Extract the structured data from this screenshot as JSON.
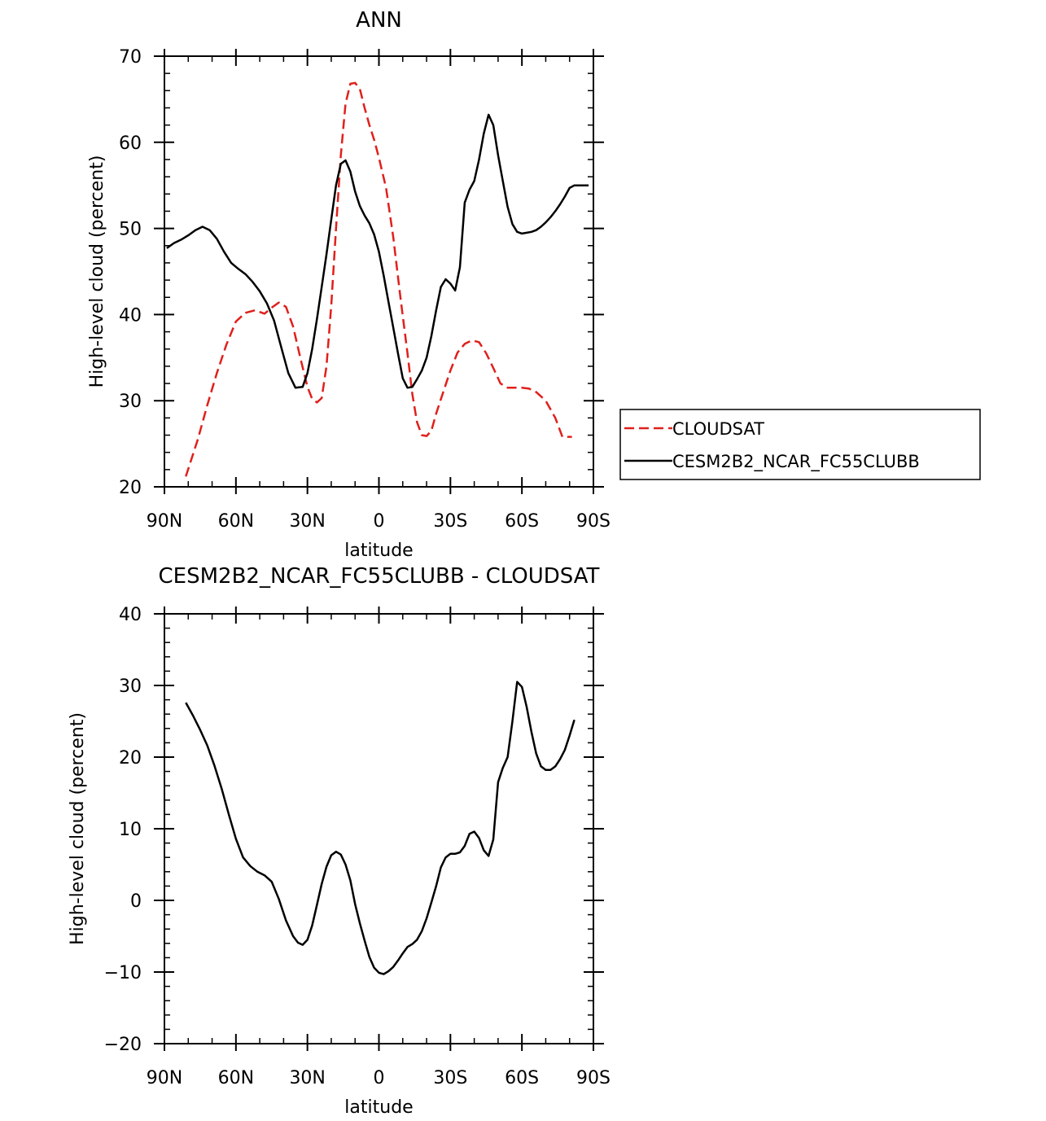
{
  "chart_data": [
    {
      "type": "line",
      "title": "ANN",
      "xlabel": "latitude",
      "ylabel": "High-level cloud (percent)",
      "xlim": [
        90,
        -90
      ],
      "ylim": [
        20,
        70
      ],
      "xticks": [
        90,
        60,
        30,
        0,
        -30,
        -60,
        -90
      ],
      "xtick_labels": [
        "90N",
        "60N",
        "30N",
        "0",
        "30S",
        "60S",
        "90S"
      ],
      "yticks": [
        20,
        30,
        40,
        50,
        60,
        70
      ],
      "ytick_labels": [
        "20",
        "30",
        "40",
        "50",
        "60",
        "70"
      ],
      "legend_position": "right",
      "grid": false,
      "series": [
        {
          "name": "CLOUDSAT",
          "color": "#e0201b",
          "style": "dashed",
          "x": [
            81,
            76,
            72,
            68,
            64,
            60,
            56,
            52,
            48,
            45,
            42,
            39,
            36,
            33,
            30,
            28,
            26,
            24,
            22,
            20,
            18,
            16,
            14,
            12,
            10,
            8,
            6,
            4,
            2,
            0,
            -3,
            -6,
            -9,
            -12,
            -14,
            -16,
            -18,
            -20,
            -22,
            -24,
            -27,
            -30,
            -33,
            -36,
            -39,
            -42,
            -45,
            -48,
            -51,
            -54,
            -57,
            -60,
            -63,
            -66,
            -70,
            -74,
            -77,
            -81
          ],
          "y": [
            21.2,
            25.5,
            29.5,
            33.2,
            36.5,
            39.2,
            40.2,
            40.5,
            40.1,
            40.8,
            41.4,
            40.9,
            38.6,
            35.0,
            31.6,
            30.2,
            29.8,
            30.3,
            34.0,
            41.0,
            50.0,
            58.5,
            64.5,
            66.8,
            66.9,
            66.2,
            64.0,
            62.0,
            60.3,
            58.2,
            54.7,
            49.0,
            42.0,
            35.5,
            30.8,
            27.5,
            26.0,
            25.9,
            26.5,
            28.5,
            31.0,
            33.5,
            35.6,
            36.6,
            37.0,
            36.8,
            35.5,
            33.8,
            32.0,
            31.5,
            31.5,
            31.5,
            31.4,
            31.0,
            30.0,
            28.0,
            25.8,
            25.8
          ]
        },
        {
          "name": "CESM2B2_NCAR_FC55CLUBB",
          "color": "#000000",
          "style": "solid",
          "x": [
            89,
            86,
            83,
            80,
            77,
            74,
            71,
            68,
            65,
            62,
            59,
            56,
            53,
            50,
            47,
            44,
            41,
            38,
            35,
            32,
            30,
            28,
            26,
            24,
            22,
            20,
            18,
            16,
            14,
            12,
            10,
            8,
            6,
            4,
            2,
            0,
            -2,
            -4,
            -6,
            -8,
            -10,
            -12,
            -14,
            -16,
            -18,
            -20,
            -22,
            -24,
            -26,
            -28,
            -30,
            -32,
            -34,
            -36,
            -38,
            -40,
            -42,
            -44,
            -46,
            -48,
            -50,
            -52,
            -54,
            -56,
            -58,
            -60,
            -62,
            -64,
            -66,
            -68,
            -70,
            -72,
            -74,
            -76,
            -78,
            -80,
            -82,
            -84,
            -86,
            -88
          ],
          "y": [
            47.7,
            48.3,
            48.7,
            49.2,
            49.8,
            50.2,
            49.8,
            48.8,
            47.3,
            46.0,
            45.3,
            44.7,
            43.8,
            42.7,
            41.3,
            39.3,
            36.2,
            33.2,
            31.5,
            31.6,
            33.2,
            36.0,
            39.5,
            43.2,
            47.0,
            51.0,
            55.0,
            57.5,
            57.9,
            56.6,
            54.3,
            52.6,
            51.5,
            50.6,
            49.3,
            47.3,
            44.5,
            41.5,
            38.5,
            35.5,
            32.6,
            31.5,
            31.6,
            32.5,
            33.5,
            35.0,
            37.5,
            40.5,
            43.2,
            44.1,
            43.6,
            42.8,
            45.5,
            53.0,
            54.5,
            55.5,
            58.0,
            61.0,
            63.2,
            62.0,
            58.5,
            55.5,
            52.5,
            50.5,
            49.6,
            49.4,
            49.5,
            49.6,
            49.8,
            50.2,
            50.7,
            51.3,
            52.0,
            52.8,
            53.7,
            54.7,
            55.0,
            55.0,
            55.0,
            55.0
          ]
        }
      ]
    },
    {
      "type": "line",
      "title": "CESM2B2_NCAR_FC55CLUBB - CLOUDSAT",
      "xlabel": "latitude",
      "ylabel": "High-level cloud (percent)",
      "xlim": [
        90,
        -90
      ],
      "ylim": [
        -20,
        40
      ],
      "xticks": [
        90,
        60,
        30,
        0,
        -30,
        -60,
        -90
      ],
      "xtick_labels": [
        "90N",
        "60N",
        "30N",
        "0",
        "30S",
        "60S",
        "90S"
      ],
      "yticks": [
        -20,
        -10,
        0,
        10,
        20,
        30,
        40
      ],
      "ytick_labels": [
        "−20",
        "−10",
        "0",
        "10",
        "20",
        "30",
        "40"
      ],
      "grid": false,
      "series": [
        {
          "color": "#000000",
          "style": "solid",
          "x": [
            81,
            78,
            75,
            72,
            69,
            66,
            63,
            60,
            57,
            54,
            51,
            48,
            45,
            42,
            39,
            36,
            34,
            32,
            30,
            28,
            26,
            24,
            22,
            20,
            18,
            16,
            14,
            12,
            10,
            8,
            6,
            4,
            2,
            0,
            -2,
            -4,
            -6,
            -8,
            -10,
            -12,
            -14,
            -16,
            -18,
            -20,
            -22,
            -24,
            -26,
            -28,
            -30,
            -32,
            -34,
            -36,
            -38,
            -40,
            -42,
            -44,
            -46,
            -48,
            -50,
            -52,
            -54,
            -56,
            -58,
            -60,
            -62,
            -64,
            -66,
            -68,
            -70,
            -72,
            -74,
            -76,
            -78,
            -80,
            -82
          ],
          "y": [
            27.6,
            25.8,
            23.8,
            21.6,
            18.8,
            15.6,
            12.0,
            8.6,
            6.0,
            4.8,
            4.0,
            3.5,
            2.6,
            0.2,
            -2.8,
            -5.0,
            -5.9,
            -6.2,
            -5.5,
            -3.5,
            -0.6,
            2.3,
            4.7,
            6.3,
            6.8,
            6.4,
            5.0,
            2.8,
            -0.5,
            -3.2,
            -5.6,
            -7.9,
            -9.4,
            -10.1,
            -10.3,
            -9.9,
            -9.3,
            -8.4,
            -7.4,
            -6.5,
            -6.1,
            -5.5,
            -4.3,
            -2.5,
            -0.3,
            2.0,
            4.6,
            6.0,
            6.5,
            6.5,
            6.7,
            7.6,
            9.3,
            9.6,
            8.7,
            7.0,
            6.2,
            8.5,
            16.5,
            18.5,
            20.0,
            25.0,
            30.5,
            29.8,
            27.0,
            23.5,
            20.5,
            18.7,
            18.2,
            18.2,
            18.7,
            19.7,
            21.0,
            23.0,
            25.2
          ]
        }
      ]
    }
  ]
}
